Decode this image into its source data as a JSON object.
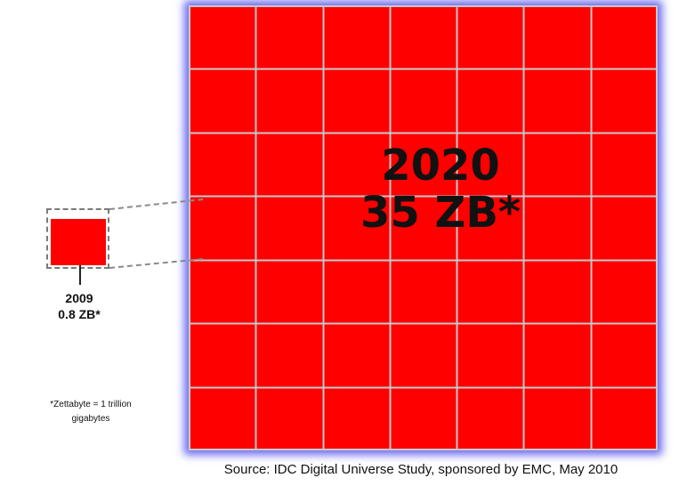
{
  "big": {
    "year": "2020",
    "value": "35 ZB*",
    "color": "#ff0000",
    "grid_line_color": "#c9c9c9",
    "glow_color": "#6a6af0",
    "rows": 7,
    "cols": 7
  },
  "small": {
    "year": "2009",
    "value": "0.8 ZB*",
    "color": "#ff0000",
    "frame_color": "#7a7a7a"
  },
  "footnote": {
    "line1": "*Zettabyte = 1 trillion",
    "line2": "gigabytes"
  },
  "source": "Source: IDC Digital Universe Study, sponsored by EMC, May 2010"
}
